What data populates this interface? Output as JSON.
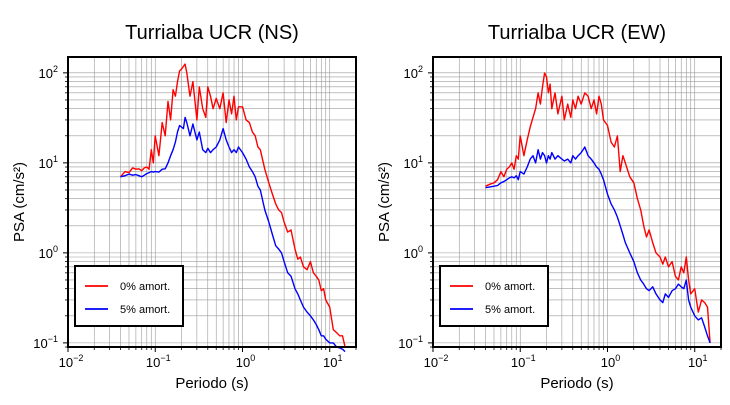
{
  "chart_data": [
    {
      "type": "line",
      "title": "Turrialba UCR (NS)",
      "xlabel": "Periodo (s)",
      "ylabel": "PSA (cm/s²)",
      "x_scale": "log",
      "y_scale": "log",
      "xlim": [
        0.01,
        20
      ],
      "ylim": [
        0.09,
        150
      ],
      "grid": true,
      "legend_position": "bottom-left",
      "x_ticks": [
        {
          "value": 0.01,
          "base": "10",
          "exp": "−2"
        },
        {
          "value": 0.1,
          "base": "10",
          "exp": "−1"
        },
        {
          "value": 1,
          "base": "10",
          "exp": "0"
        },
        {
          "value": 10,
          "base": "10",
          "exp": "1"
        }
      ],
      "y_ticks": [
        {
          "value": 0.1,
          "label": "10",
          "exp": "−1"
        },
        {
          "value": 1,
          "label": "10",
          "exp": "0"
        },
        {
          "value": 10,
          "label": "10",
          "exp": "1"
        },
        {
          "value": 100,
          "label": "10",
          "exp": "2"
        }
      ],
      "series": [
        {
          "name": "0% amort.",
          "color": "#ff0000",
          "x": [
            0.04,
            0.045,
            0.05,
            0.055,
            0.06,
            0.065,
            0.07,
            0.075,
            0.08,
            0.085,
            0.09,
            0.095,
            0.1,
            0.11,
            0.12,
            0.13,
            0.14,
            0.15,
            0.16,
            0.17,
            0.18,
            0.19,
            0.2,
            0.21,
            0.22,
            0.23,
            0.25,
            0.27,
            0.3,
            0.32,
            0.35,
            0.38,
            0.4,
            0.43,
            0.46,
            0.5,
            0.55,
            0.6,
            0.65,
            0.7,
            0.75,
            0.8,
            0.85,
            0.9,
            1.0,
            1.1,
            1.2,
            1.3,
            1.4,
            1.5,
            1.6,
            1.8,
            2.0,
            2.2,
            2.4,
            2.6,
            2.8,
            3.0,
            3.3,
            3.6,
            4.0,
            4.3,
            4.6,
            5.0,
            5.5,
            6.0,
            6.5,
            7.0,
            7.5,
            8.0,
            8.5,
            9.0,
            10,
            11,
            12,
            13,
            14,
            15
          ],
          "y": [
            7,
            8,
            7.8,
            8.8,
            8.5,
            8.6,
            8.2,
            8.8,
            9,
            8.5,
            14,
            10,
            20,
            12,
            28,
            20,
            48,
            30,
            65,
            55,
            80,
            105,
            110,
            118,
            125,
            100,
            55,
            80,
            30,
            70,
            40,
            32,
            70,
            55,
            40,
            52,
            40,
            60,
            28,
            50,
            35,
            55,
            30,
            42,
            42,
            30,
            28,
            22,
            20,
            15,
            14,
            8.5,
            6,
            4.5,
            3.5,
            3.0,
            2.8,
            2.2,
            1.7,
            1.8,
            1.1,
            0.85,
            0.9,
            0.7,
            0.65,
            0.8,
            0.6,
            0.55,
            0.5,
            0.38,
            0.4,
            0.3,
            0.25,
            0.14,
            0.13,
            0.12,
            0.12,
            0.09
          ]
        },
        {
          "name": "5% amort.",
          "color": "#0000ff",
          "x": [
            0.04,
            0.045,
            0.05,
            0.055,
            0.06,
            0.065,
            0.07,
            0.075,
            0.08,
            0.085,
            0.09,
            0.095,
            0.1,
            0.11,
            0.12,
            0.13,
            0.14,
            0.15,
            0.16,
            0.17,
            0.18,
            0.19,
            0.2,
            0.21,
            0.22,
            0.23,
            0.25,
            0.27,
            0.3,
            0.32,
            0.35,
            0.38,
            0.4,
            0.43,
            0.46,
            0.5,
            0.55,
            0.6,
            0.65,
            0.7,
            0.75,
            0.8,
            0.85,
            0.9,
            1.0,
            1.1,
            1.2,
            1.3,
            1.4,
            1.5,
            1.6,
            1.8,
            2.0,
            2.2,
            2.4,
            2.6,
            2.8,
            3.0,
            3.3,
            3.6,
            4.0,
            4.3,
            4.6,
            5.0,
            5.5,
            6.0,
            6.5,
            7.0,
            7.5,
            8.0,
            8.5,
            9.0,
            10,
            11,
            12,
            13,
            14,
            15
          ],
          "y": [
            7,
            7.2,
            7.5,
            7.3,
            7.4,
            7.2,
            7.0,
            7.3,
            7.6,
            7.8,
            8,
            7.9,
            8,
            7.9,
            8.5,
            8.6,
            10,
            12,
            14,
            17,
            22,
            26,
            25,
            24,
            32,
            28,
            20,
            27,
            18,
            22,
            14,
            13,
            14.5,
            13,
            14,
            15,
            18,
            24,
            18,
            15,
            13,
            14,
            13,
            15,
            13,
            11,
            9,
            8,
            7,
            5.5,
            5,
            3,
            2.2,
            1.6,
            1.2,
            1.1,
            1.0,
            0.8,
            0.6,
            0.55,
            0.4,
            0.35,
            0.3,
            0.25,
            0.22,
            0.2,
            0.18,
            0.16,
            0.14,
            0.12,
            0.12,
            0.11,
            0.1,
            0.1,
            0.09,
            0.088,
            0.085,
            0.08
          ]
        }
      ]
    },
    {
      "type": "line",
      "title": "Turrialba UCR (EW)",
      "xlabel": "Periodo (s)",
      "ylabel": "PSA (cm/s²)",
      "x_scale": "log",
      "y_scale": "log",
      "xlim": [
        0.01,
        20
      ],
      "ylim": [
        0.09,
        150
      ],
      "grid": true,
      "legend_position": "bottom-left",
      "x_ticks": [
        {
          "value": 0.01,
          "base": "10",
          "exp": "−2"
        },
        {
          "value": 0.1,
          "base": "10",
          "exp": "−1"
        },
        {
          "value": 1,
          "base": "10",
          "exp": "0"
        },
        {
          "value": 10,
          "base": "10",
          "exp": "1"
        }
      ],
      "y_ticks": [
        {
          "value": 0.1,
          "label": "10",
          "exp": "−1"
        },
        {
          "value": 1,
          "label": "10",
          "exp": "0"
        },
        {
          "value": 10,
          "label": "10",
          "exp": "1"
        },
        {
          "value": 100,
          "label": "10",
          "exp": "2"
        }
      ],
      "series": [
        {
          "name": "0% amort.",
          "color": "#ff0000",
          "x": [
            0.04,
            0.045,
            0.05,
            0.055,
            0.06,
            0.065,
            0.07,
            0.075,
            0.08,
            0.085,
            0.09,
            0.095,
            0.1,
            0.11,
            0.12,
            0.13,
            0.14,
            0.15,
            0.16,
            0.17,
            0.18,
            0.19,
            0.2,
            0.21,
            0.22,
            0.23,
            0.25,
            0.27,
            0.3,
            0.32,
            0.35,
            0.38,
            0.4,
            0.43,
            0.46,
            0.5,
            0.55,
            0.6,
            0.65,
            0.7,
            0.75,
            0.8,
            0.85,
            0.9,
            1.0,
            1.1,
            1.2,
            1.3,
            1.4,
            1.5,
            1.6,
            1.8,
            2.0,
            2.2,
            2.4,
            2.6,
            2.8,
            3.0,
            3.3,
            3.6,
            4.0,
            4.3,
            4.6,
            5.0,
            5.5,
            6.0,
            6.5,
            7.0,
            7.5,
            8.0,
            8.5,
            9.0,
            10,
            11,
            12,
            13,
            14,
            15
          ],
          "y": [
            5.5,
            5.8,
            6,
            6.5,
            8,
            7,
            8.5,
            9,
            10,
            8.5,
            12,
            11,
            20,
            12,
            18,
            25,
            32,
            40,
            60,
            45,
            70,
            100,
            90,
            60,
            75,
            40,
            60,
            35,
            55,
            30,
            45,
            32,
            50,
            40,
            55,
            45,
            60,
            55,
            40,
            50,
            35,
            55,
            45,
            30,
            26,
            17,
            15,
            20,
            8,
            12,
            10,
            7,
            6,
            4,
            3,
            2.0,
            1.5,
            1.8,
            1.3,
            1.0,
            0.9,
            0.75,
            0.9,
            0.7,
            0.8,
            0.55,
            0.5,
            0.7,
            0.6,
            0.9,
            0.5,
            0.35,
            0.4,
            0.22,
            0.3,
            0.28,
            0.25,
            0.1
          ]
        },
        {
          "name": "5% amort.",
          "color": "#0000ff",
          "x": [
            0.04,
            0.045,
            0.05,
            0.055,
            0.06,
            0.065,
            0.07,
            0.075,
            0.08,
            0.085,
            0.09,
            0.095,
            0.1,
            0.11,
            0.12,
            0.13,
            0.14,
            0.15,
            0.16,
            0.17,
            0.18,
            0.19,
            0.2,
            0.21,
            0.22,
            0.23,
            0.25,
            0.27,
            0.3,
            0.32,
            0.35,
            0.38,
            0.4,
            0.43,
            0.46,
            0.5,
            0.55,
            0.6,
            0.65,
            0.7,
            0.75,
            0.8,
            0.85,
            0.9,
            1.0,
            1.1,
            1.2,
            1.3,
            1.4,
            1.5,
            1.6,
            1.8,
            2.0,
            2.2,
            2.4,
            2.6,
            2.8,
            3.0,
            3.3,
            3.6,
            4.0,
            4.3,
            4.6,
            5.0,
            5.5,
            6.0,
            6.5,
            7.0,
            7.5,
            8.0,
            8.5,
            9.0,
            10,
            11,
            12,
            13,
            14,
            15
          ],
          "y": [
            5.3,
            5.4,
            5.5,
            5.6,
            6,
            6.2,
            6.5,
            6.8,
            7,
            6.8,
            7.2,
            6.5,
            8,
            7.5,
            9,
            11,
            12,
            10,
            14,
            11,
            13,
            12,
            10,
            12,
            11,
            13,
            11,
            12,
            11,
            10.5,
            11,
            10,
            12,
            11,
            12,
            13,
            15,
            12,
            11,
            10,
            9,
            8.5,
            7.5,
            6.5,
            4.5,
            3.5,
            3,
            2.5,
            2,
            1.6,
            1.3,
            1.0,
            0.8,
            0.6,
            0.5,
            0.45,
            0.4,
            0.38,
            0.42,
            0.35,
            0.3,
            0.28,
            0.35,
            0.32,
            0.38,
            0.4,
            0.45,
            0.42,
            0.4,
            0.5,
            0.3,
            0.25,
            0.2,
            0.18,
            0.19,
            0.15,
            0.12,
            0.1
          ]
        }
      ]
    }
  ]
}
